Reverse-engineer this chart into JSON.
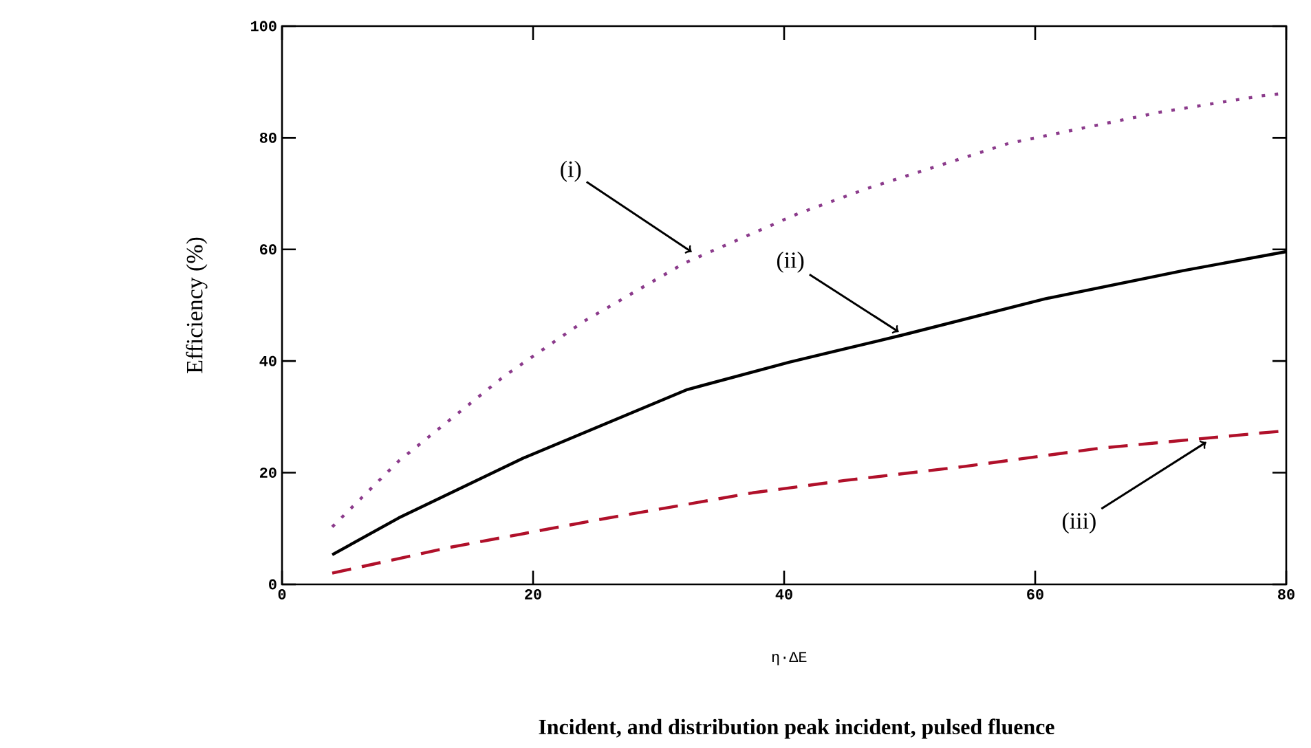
{
  "chart_data": {
    "type": "line",
    "xlabel": "η·ΔE",
    "ylabel": "Efficiency (%)",
    "xlim": [
      0,
      80
    ],
    "ylim": [
      0,
      100
    ],
    "xticks": [
      0,
      20,
      40,
      60,
      80
    ],
    "yticks": [
      0,
      20,
      40,
      60,
      80,
      100
    ],
    "marker": "none",
    "series": [
      {
        "color": "#8b3a8b",
        "line_style": "dotted",
        "x": [
          4,
          9.3,
          17.7,
          24.1,
          32.1,
          41.1,
          46.6,
          57.9,
          70,
          78,
          80
        ],
        "values": [
          10.3,
          22.1,
          37.3,
          47.2,
          57.6,
          66.4,
          70.9,
          79.0,
          84.6,
          87.5,
          88
        ]
      },
      {
        "color": "#000000",
        "line_style": "solid",
        "x": [
          4,
          9.3,
          19.2,
          32.3,
          40.4,
          49.5,
          60.9,
          71.8,
          80
        ],
        "values": [
          5.3,
          11.9,
          22.6,
          34.9,
          39.8,
          44.7,
          51.2,
          56.2,
          59.6
        ]
      },
      {
        "color": "#b0102a",
        "line_style": "dashed",
        "x": [
          4,
          13.3,
          25,
          37.5,
          44.8,
          54.3,
          65.2,
          78.4,
          80
        ],
        "values": [
          2.0,
          6.6,
          11.5,
          16.4,
          18.6,
          21.1,
          24.4,
          27.2,
          27.5
        ]
      }
    ],
    "annotations": [
      {
        "text": "(i)",
        "x": 33,
        "y": 59
      },
      {
        "text": "(ii)",
        "x": 49.5,
        "y": 44.7
      },
      {
        "text": "(iii)",
        "x": 74,
        "y": 26
      },
      "Incident, and distribution peak incident, pulsed fluence"
    ]
  }
}
